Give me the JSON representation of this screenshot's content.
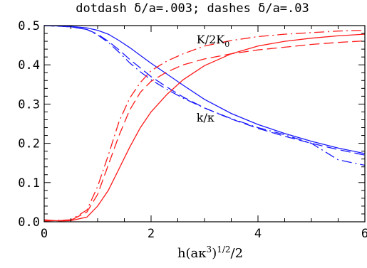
{
  "chart_data": {
    "type": "line",
    "title": "dotdash δ/a=.003; dashes δ/a=.03",
    "xlabel": "h(aκ³)^1/2/2",
    "ylabel": "",
    "xlim": [
      0,
      6
    ],
    "ylim": [
      0,
      0.5
    ],
    "xticks": [
      "0",
      "2",
      "4",
      "6"
    ],
    "yticks": [
      "0.0",
      "0.1",
      "0.2",
      "0.3",
      "0.4",
      "0.5"
    ],
    "grid": false,
    "annotations": [
      {
        "text": "K/2K",
        "sub": "0",
        "x": 2.85,
        "y": 0.455
      },
      {
        "text": "k/κ",
        "x": 2.85,
        "y": 0.255
      }
    ],
    "series": [
      {
        "color": "#1a1aff",
        "dash": "solid",
        "x": [
          0,
          0.5,
          0.8,
          1.0,
          1.2,
          1.4,
          1.6,
          1.8,
          2.0,
          2.3,
          2.6,
          3.0,
          3.5,
          4.0,
          4.5,
          5.0,
          5.5,
          6.0
        ],
        "y": [
          0.5,
          0.498,
          0.494,
          0.488,
          0.478,
          0.462,
          0.444,
          0.424,
          0.404,
          0.376,
          0.348,
          0.312,
          0.276,
          0.248,
          0.225,
          0.205,
          0.188,
          0.174
        ]
      },
      {
        "color": "#1a1aff",
        "dash": "dashed",
        "x": [
          0,
          0.5,
          0.8,
          1.0,
          1.2,
          1.4,
          1.6,
          1.8,
          2.0,
          2.3,
          2.6,
          3.0,
          3.5,
          4.0,
          4.5,
          5.0,
          5.5,
          6.0
        ],
        "y": [
          0.5,
          0.497,
          0.49,
          0.478,
          0.46,
          0.438,
          0.414,
          0.392,
          0.37,
          0.343,
          0.318,
          0.29,
          0.262,
          0.238,
          0.218,
          0.2,
          0.184,
          0.17
        ]
      },
      {
        "color": "#1a1aff",
        "dash": "dashdot",
        "x": [
          0,
          0.5,
          0.8,
          1.0,
          1.2,
          1.4,
          1.6,
          1.8,
          2.0,
          2.3,
          2.6,
          3.0,
          3.5,
          4.0,
          4.5,
          5.0,
          5.5,
          6.0
        ],
        "y": [
          0.5,
          0.497,
          0.49,
          0.476,
          0.457,
          0.432,
          0.405,
          0.382,
          0.362,
          0.337,
          0.315,
          0.29,
          0.263,
          0.24,
          0.222,
          0.2,
          0.158,
          0.144
        ]
      },
      {
        "color": "#ff1a1a",
        "dash": "solid",
        "x": [
          0,
          0.3,
          0.5,
          0.8,
          1.0,
          1.2,
          1.4,
          1.6,
          1.8,
          2.0,
          2.3,
          2.6,
          3.0,
          3.5,
          4.0,
          4.5,
          5.0,
          5.5,
          6.0
        ],
        "y": [
          0.005,
          0.002,
          0.003,
          0.012,
          0.04,
          0.08,
          0.135,
          0.19,
          0.24,
          0.28,
          0.325,
          0.362,
          0.398,
          0.428,
          0.448,
          0.46,
          0.468,
          0.474,
          0.478
        ]
      },
      {
        "color": "#ff1a1a",
        "dash": "dashed",
        "x": [
          0,
          0.5,
          0.8,
          1.0,
          1.2,
          1.4,
          1.6,
          1.8,
          2.0,
          2.3,
          2.6,
          3.0,
          3.5,
          4.0,
          4.5,
          5.0,
          5.5,
          6.0
        ],
        "y": [
          0.002,
          0.004,
          0.025,
          0.07,
          0.145,
          0.22,
          0.285,
          0.33,
          0.358,
          0.382,
          0.4,
          0.415,
          0.428,
          0.438,
          0.445,
          0.452,
          0.457,
          0.461
        ]
      },
      {
        "color": "#ff1a1a",
        "dash": "dashdot",
        "x": [
          0,
          0.5,
          0.8,
          1.0,
          1.2,
          1.4,
          1.6,
          1.8,
          2.0,
          2.3,
          2.6,
          3.0,
          3.5,
          4.0,
          4.5,
          5.0,
          5.5,
          6.0
        ],
        "y": [
          0.002,
          0.005,
          0.03,
          0.09,
          0.17,
          0.255,
          0.315,
          0.355,
          0.385,
          0.41,
          0.428,
          0.448,
          0.462,
          0.472,
          0.478,
          0.482,
          0.486,
          0.488
        ]
      }
    ]
  }
}
